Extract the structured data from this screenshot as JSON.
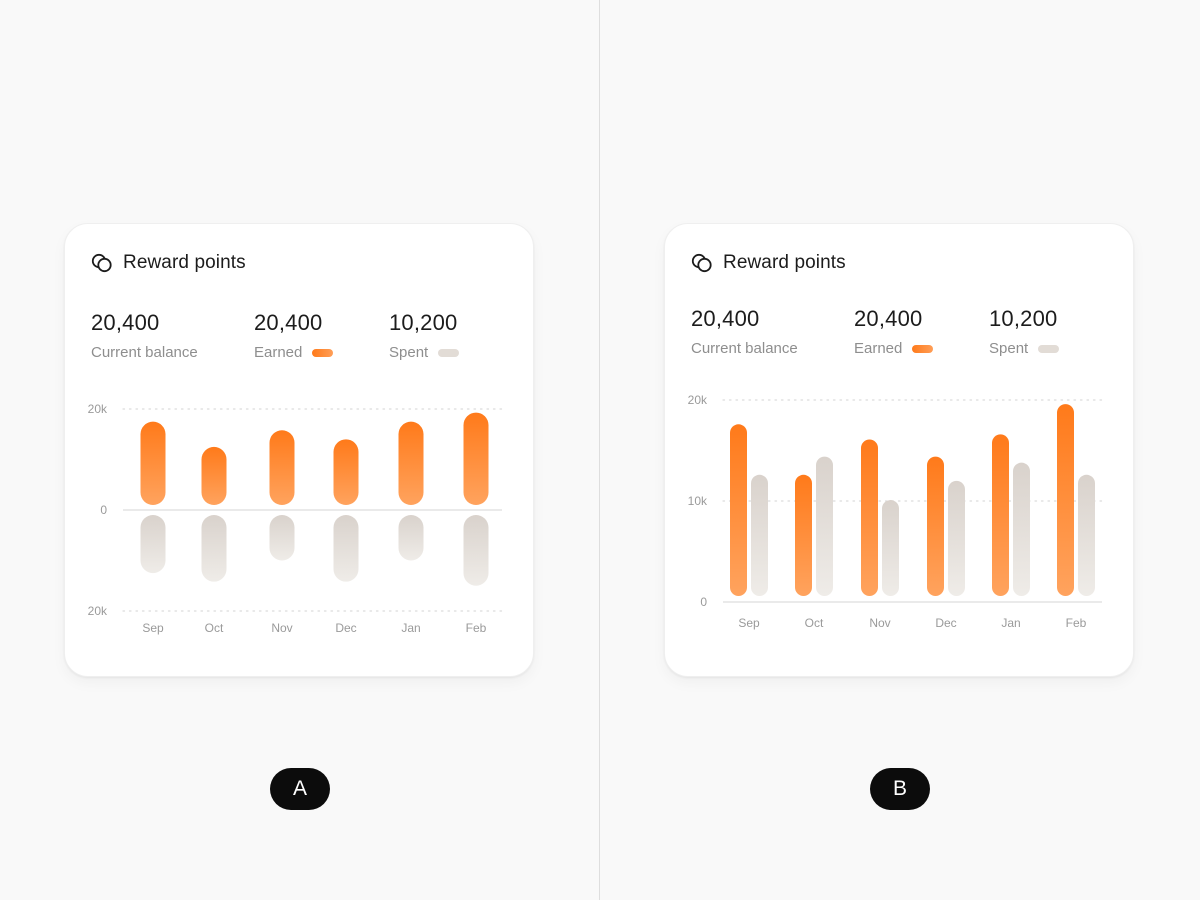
{
  "colors": {
    "earned_top": "#ff7a1a",
    "earned_bottom": "#ffa35e",
    "spent_top": "#d9d2cc",
    "spent_bottom": "#efece8",
    "grid": "#dcdcdc",
    "axis": "#e4e4e4"
  },
  "cards": [
    {
      "id": "A",
      "title": "Reward points",
      "icon": "coins-icon",
      "stats": [
        {
          "value": "20,400",
          "label": "Current balance"
        },
        {
          "value": "20,400",
          "label": "Earned"
        },
        {
          "value": "10,200",
          "label": "Spent"
        }
      ],
      "badge": "A"
    },
    {
      "id": "B",
      "title": "Reward points",
      "icon": "coins-icon",
      "stats": [
        {
          "value": "20,400",
          "label": "Current balance"
        },
        {
          "value": "20,400",
          "label": "Earned"
        },
        {
          "value": "10,200",
          "label": "Spent"
        }
      ],
      "badge": "B"
    }
  ],
  "chart_data": [
    {
      "type": "bar",
      "variant": "diverging",
      "categories": [
        "Sep",
        "Oct",
        "Nov",
        "Dec",
        "Jan",
        "Feb"
      ],
      "series": [
        {
          "name": "Earned",
          "values": [
            16500,
            11500,
            14800,
            13000,
            16500,
            18300
          ]
        },
        {
          "name": "Spent",
          "values": [
            -11500,
            -13200,
            -9000,
            -13200,
            -9000,
            -14000
          ]
        }
      ],
      "yticks": [
        "20k",
        "0",
        "20k"
      ],
      "ylim": [
        -20000,
        20000
      ],
      "grid": "dotted at ±20k"
    },
    {
      "type": "bar",
      "variant": "grouped",
      "categories": [
        "Sep",
        "Oct",
        "Nov",
        "Dec",
        "Jan",
        "Feb"
      ],
      "series": [
        {
          "name": "Earned",
          "values": [
            17000,
            12000,
            15500,
            13800,
            16000,
            19000
          ]
        },
        {
          "name": "Spent",
          "values": [
            12000,
            13800,
            9500,
            11400,
            13200,
            12000
          ]
        }
      ],
      "yticks": [
        "20k",
        "10k",
        "0"
      ],
      "ylim": [
        0,
        20000
      ],
      "grid": "dotted at 10k and 20k"
    }
  ]
}
